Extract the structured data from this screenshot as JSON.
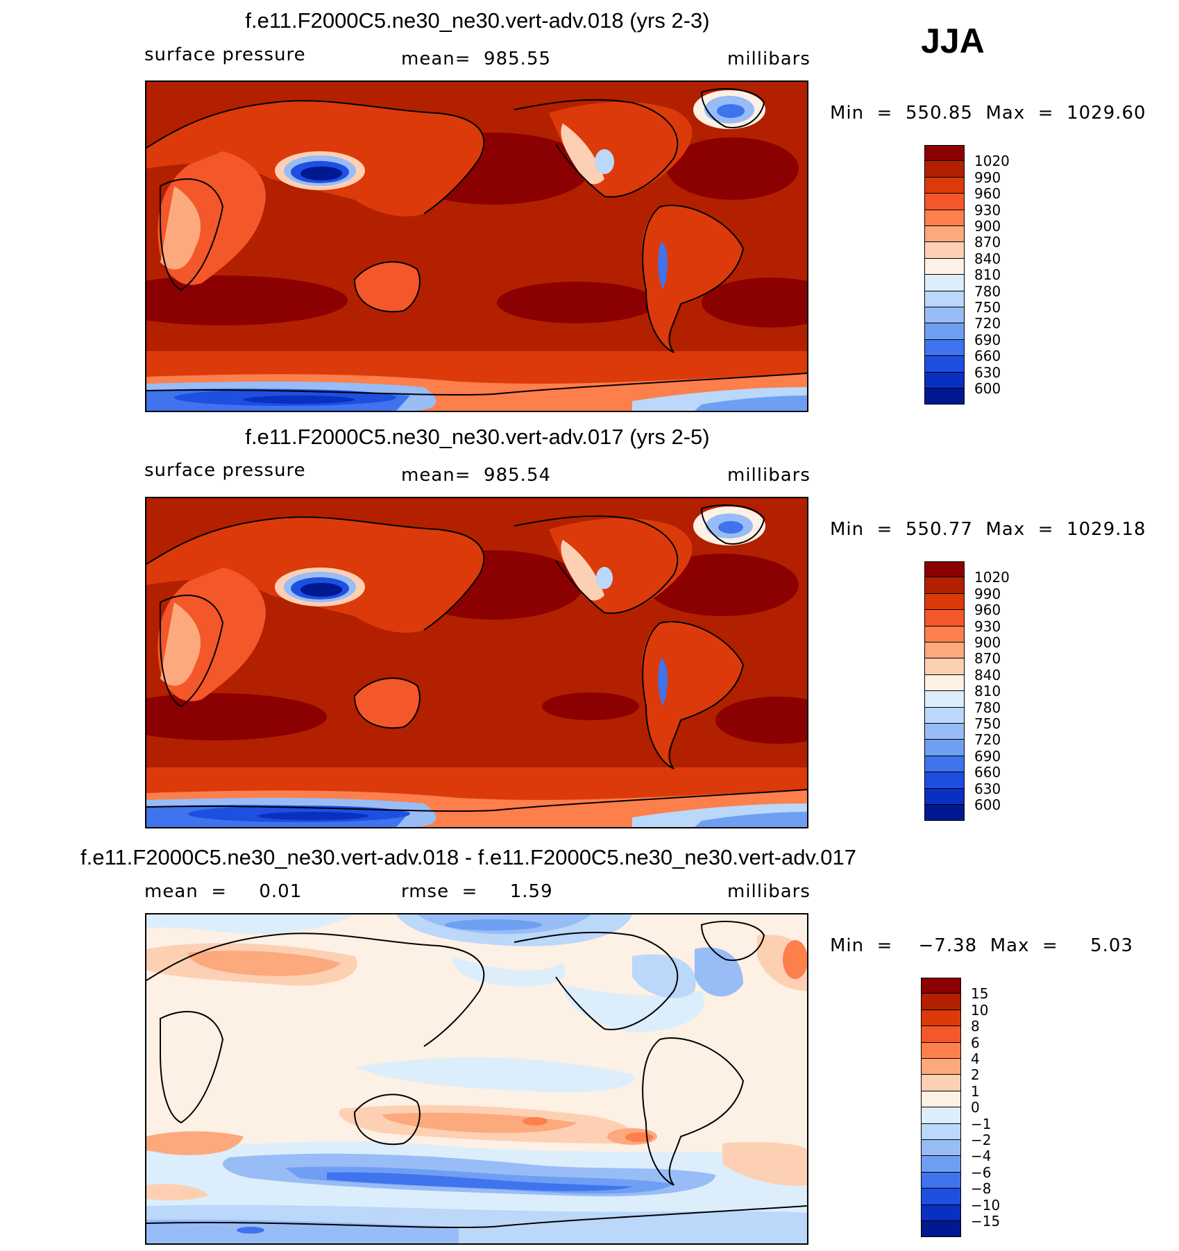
{
  "season": "JJA",
  "panels": [
    {
      "title": "f.e11.F2000C5.ne30_ne30.vert-adv.018 (yrs 2-3)",
      "left_label": "surface pressure",
      "center_label": "mean=  985.55",
      "right_label": "millibars",
      "minmax": "Min  =  550.85  Max  =  1029.60",
      "colorbar": {
        "colors": [
          "#8b0000",
          "#b22000",
          "#dc3a0a",
          "#f4572a",
          "#fc7f4c",
          "#fca97e",
          "#fdd0b4",
          "#fdf0e4",
          "#dceefb",
          "#bbd7f9",
          "#98bcf6",
          "#6e9ff2",
          "#3f74ee",
          "#1e4fe0",
          "#0a30c2",
          "#001890"
        ],
        "labels": [
          "1020",
          "990",
          "960",
          "930",
          "900",
          "870",
          "840",
          "810",
          "780",
          "750",
          "720",
          "690",
          "660",
          "630",
          "600"
        ]
      }
    },
    {
      "title": "f.e11.F2000C5.ne30_ne30.vert-adv.017 (yrs 2-5)",
      "left_label": "surface pressure",
      "center_label": "mean=  985.54",
      "right_label": "millibars",
      "minmax": "Min  =  550.77  Max  =  1029.18",
      "colorbar": {
        "colors": [
          "#8b0000",
          "#b22000",
          "#dc3a0a",
          "#f4572a",
          "#fc7f4c",
          "#fca97e",
          "#fdd0b4",
          "#fdf0e4",
          "#dceefb",
          "#bbd7f9",
          "#98bcf6",
          "#6e9ff2",
          "#3f74ee",
          "#1e4fe0",
          "#0a30c2",
          "#001890"
        ],
        "labels": [
          "1020",
          "990",
          "960",
          "930",
          "900",
          "870",
          "840",
          "810",
          "780",
          "750",
          "720",
          "690",
          "660",
          "630",
          "600"
        ]
      }
    },
    {
      "title": "f.e11.F2000C5.ne30_ne30.vert-adv.018 - f.e11.F2000C5.ne30_ne30.vert-adv.017",
      "left_label": "mean  =     0.01",
      "center_label": "rmse  =     1.59",
      "right_label": "millibars",
      "minmax": "Min  =    −7.38  Max  =     5.03",
      "colorbar": {
        "colors": [
          "#8b0000",
          "#b22000",
          "#dc3a0a",
          "#f4572a",
          "#fc7f4c",
          "#fca97e",
          "#fdd0b4",
          "#fdf0e4",
          "#dceefb",
          "#bbd7f9",
          "#98bcf6",
          "#6e9ff2",
          "#3f74ee",
          "#1e4fe0",
          "#0a30c2",
          "#001890"
        ],
        "labels": [
          "15",
          "10",
          "8",
          "6",
          "4",
          "2",
          "1",
          "0",
          "−1",
          "−2",
          "−4",
          "−6",
          "−8",
          "−10",
          "−15"
        ]
      }
    }
  ]
}
